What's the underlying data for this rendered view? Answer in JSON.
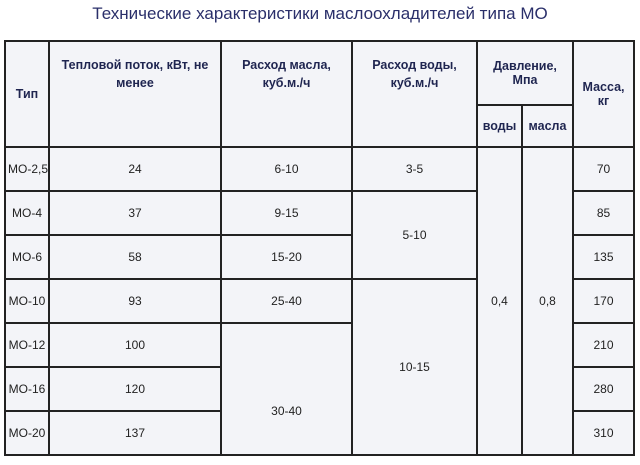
{
  "title": "Технические характеристики маслоохладителей типа МО",
  "table": {
    "header": {
      "type": "Тип",
      "heat": "Тепловой поток, кВт, не менее",
      "oil_flow": "Расход масла, куб.м./ч",
      "water_flow": "Расход воды, куб.м./ч",
      "pressure": "Давление, Мпа",
      "pressure_water": "воды",
      "pressure_oil": "масла",
      "mass": "Масса, кг"
    },
    "rows": [
      [
        "МО-2,5",
        "24",
        "6-10",
        "3-5",
        "0,4",
        "0,8",
        "70"
      ],
      [
        "МО-4",
        "37",
        "9-15",
        "5-10",
        "85"
      ],
      [
        "МО-6",
        "58",
        "15-20",
        "135"
      ],
      [
        "МО-10",
        "93",
        "25-40",
        "10-15",
        "170"
      ],
      [
        "МО-12",
        "100",
        "210"
      ],
      [
        "МО-16",
        "120",
        "30-40",
        "280"
      ],
      [
        "МО-20",
        "137",
        "310"
      ]
    ]
  }
}
